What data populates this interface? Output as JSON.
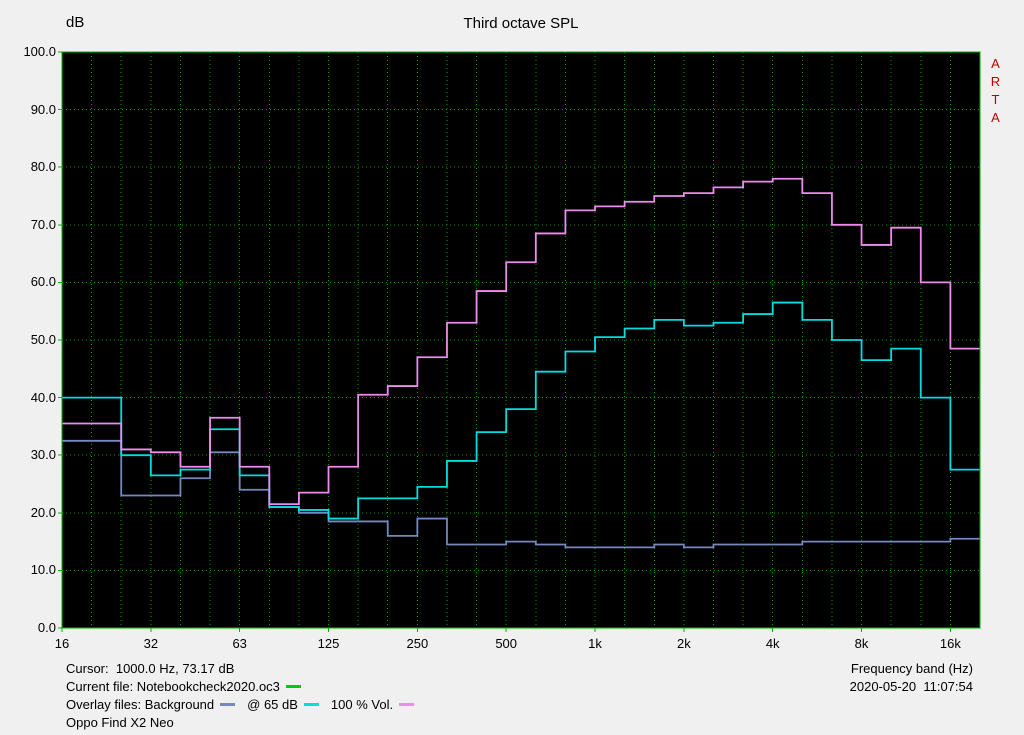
{
  "header": {
    "db_label": "dB",
    "title": "Third octave SPL",
    "brand": "ARTA"
  },
  "status": {
    "cursor_text": "Cursor:  1000.0 Hz, 73.17 dB",
    "x_axis_label": "Frequency band (Hz)",
    "datetime": "2020-05-20  11:07:54",
    "overlay_files_label": "Overlay files: ",
    "device": "Oppo Find X2 Neo"
  },
  "colors": {
    "page_bg": "#f0f0f0",
    "plot_bg": "#000000",
    "grid_green": "#00a000",
    "frame_green": "#00b400",
    "brand_red": "#c00000",
    "text": "#000000"
  },
  "chart_data": {
    "type": "step-line",
    "title": "Third octave SPL",
    "ylabel": "dB",
    "xlabel": "Frequency band (Hz)",
    "ylim": [
      0,
      100
    ],
    "y_tick_values": [
      100,
      90,
      80,
      70,
      60,
      50,
      40,
      30,
      20,
      10,
      0
    ],
    "y_tick_labels": [
      "100.0",
      "90.0",
      "80.0",
      "70.0",
      "60.0",
      "50.0",
      "40.0",
      "30.0",
      "20.0",
      "10.0",
      "0.0"
    ],
    "bands_hz": [
      16,
      20,
      25,
      31.5,
      40,
      50,
      63,
      80,
      100,
      125,
      160,
      200,
      250,
      315,
      400,
      500,
      630,
      800,
      1000,
      1250,
      1600,
      2000,
      2500,
      3150,
      4000,
      5000,
      6300,
      8000,
      10000,
      12500,
      16000
    ],
    "x_tick_labels": [
      "16",
      "32",
      "63",
      "125",
      "250",
      "500",
      "1k",
      "2k",
      "4k",
      "8k",
      "16k"
    ],
    "x_tick_band_index": [
      0,
      3,
      6,
      9,
      12,
      15,
      18,
      21,
      24,
      27,
      30
    ],
    "grid": {
      "color": "#00a000",
      "style": "dotted",
      "frame_color": "#00b400",
      "plot_bg": "#000000"
    },
    "cursor": {
      "freq_hz": 1000.0,
      "spl_db": 73.17
    },
    "legend_position": "bottom-left status bar",
    "series": [
      {
        "name": "Background",
        "color": "#7589c0",
        "values": [
          32.5,
          32.5,
          23,
          23,
          26,
          30.5,
          24,
          21,
          20,
          18.5,
          18.5,
          16,
          19,
          14.5,
          14.5,
          15,
          14.5,
          14,
          14,
          14,
          14.5,
          14,
          14.5,
          14.5,
          14.5,
          15,
          15,
          15,
          15,
          15,
          15.5
        ]
      },
      {
        "name": "@ 65 dB",
        "color": "#00dede",
        "values": [
          40,
          40,
          30,
          26.5,
          27.5,
          34.5,
          26.5,
          21,
          20.5,
          19,
          22.5,
          22.5,
          24.5,
          29,
          34,
          38,
          44.5,
          48,
          50.5,
          52,
          53.5,
          52.5,
          53,
          54.5,
          56.5,
          53.5,
          50,
          46.5,
          48.5,
          40,
          27.5
        ]
      },
      {
        "name": "100 % Vol.",
        "color": "#ee8cee",
        "values": [
          35.5,
          35.5,
          31,
          30.5,
          28,
          36.5,
          28,
          21.5,
          23.5,
          28,
          40.5,
          42,
          47,
          53,
          58.5,
          63.5,
          68.5,
          72.5,
          73.2,
          74,
          75,
          75.5,
          76.5,
          77.5,
          78,
          75.5,
          70,
          66.5,
          69.5,
          60,
          48.5
        ]
      }
    ],
    "legend": [
      {
        "label": "Current file: Notebookcheck2020.oc3",
        "color": "#00cc00",
        "marker": "current-file"
      },
      {
        "label": "Background",
        "color": "#7589c0",
        "marker": "overlay-background"
      },
      {
        "label": "@ 65 dB",
        "color": "#00dede",
        "marker": "overlay-65db"
      },
      {
        "label": "100 % Vol.",
        "color": "#ee8cee",
        "marker": "overlay-100vol"
      }
    ]
  }
}
